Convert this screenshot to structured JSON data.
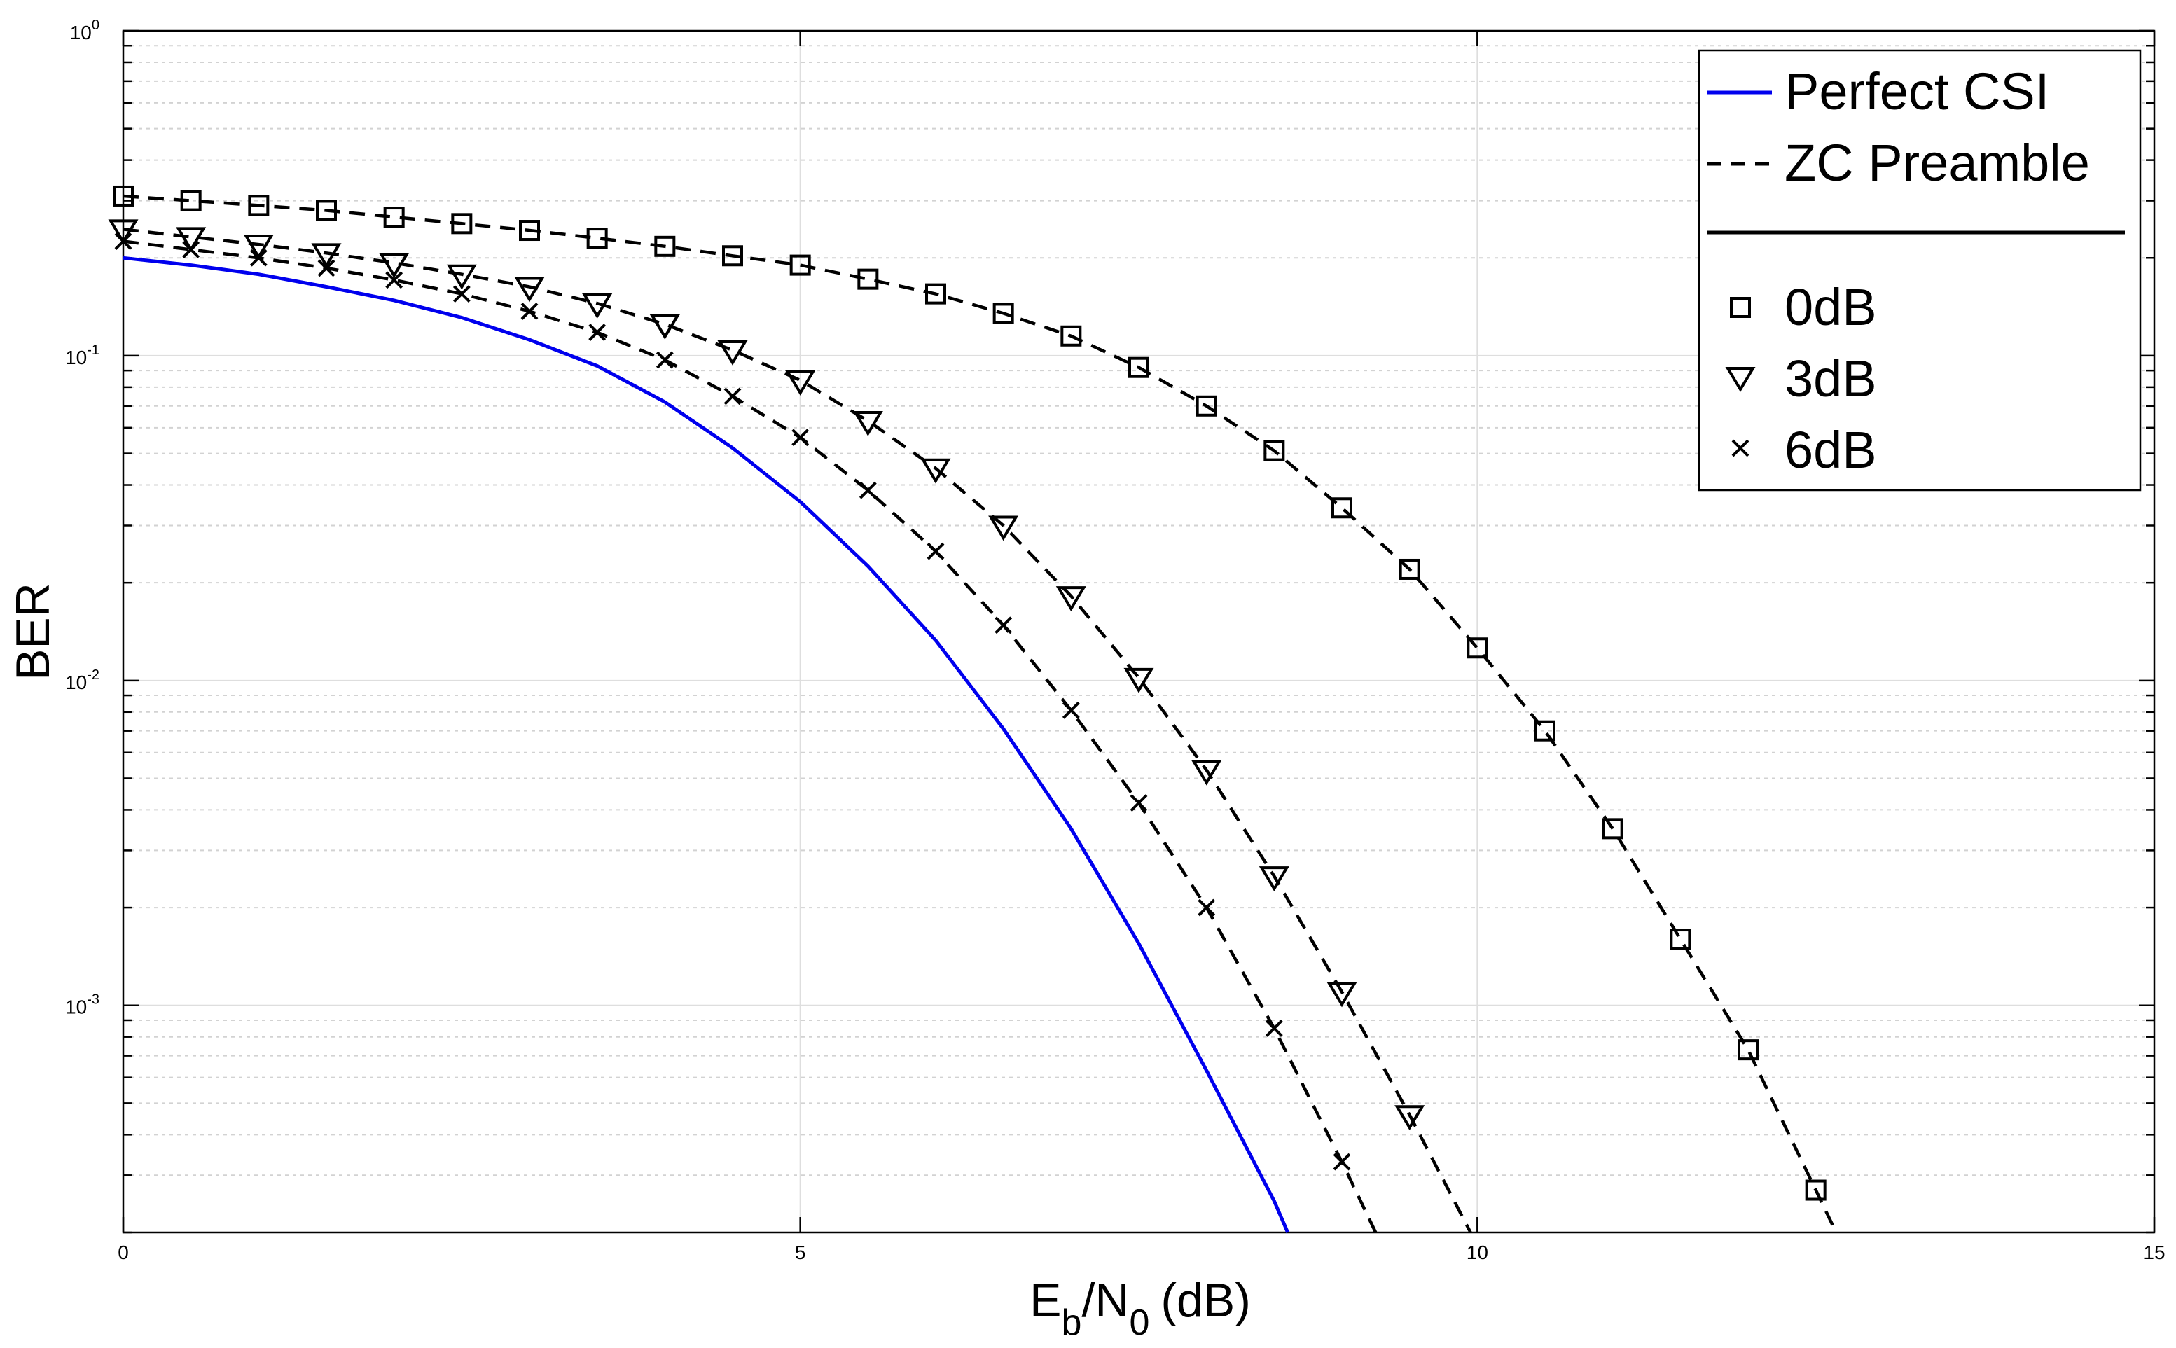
{
  "chart_data": {
    "type": "line",
    "yscale": "log",
    "title": "",
    "xlabel_parts": {
      "e": "E",
      "e_sub": "b",
      "slash": "/",
      "n": "N",
      "n_sub": "0",
      "unit": "(dB)"
    },
    "ylabel": "BER",
    "xlim": [
      0,
      15
    ],
    "ylim": [
      0.0002,
      1
    ],
    "grid": true,
    "x_ticks": [
      0,
      5,
      10,
      15
    ],
    "x_tick_labels": [
      "0",
      "5",
      "10",
      "15"
    ],
    "y_ticks": [
      {
        "value": 1,
        "base": "10",
        "exp": "0"
      },
      {
        "value": 0.1,
        "base": "10",
        "exp": "-1"
      },
      {
        "value": 0.01,
        "base": "10",
        "exp": "-2"
      },
      {
        "value": 0.001,
        "base": "10",
        "exp": "-3"
      }
    ],
    "legend": {
      "placement": "top-right",
      "entries": [
        {
          "label": "Perfect CSI",
          "kind": "line",
          "style": "solid",
          "color": "#0000ee"
        },
        {
          "label": "ZC Preamble",
          "kind": "line",
          "style": "dashed",
          "color": "#000000"
        },
        {
          "kind": "separator"
        },
        {
          "label": "0dB",
          "kind": "marker",
          "marker": "square"
        },
        {
          "label": "3dB",
          "kind": "marker",
          "marker": "triangle-down"
        },
        {
          "label": "6dB",
          "kind": "marker",
          "marker": "x"
        }
      ]
    },
    "series": [
      {
        "name": "Perfect CSI",
        "style": "solid",
        "color": "#0000ee",
        "marker": "none",
        "x": [
          0,
          0.5,
          1,
          1.5,
          2,
          2.5,
          3,
          3.5,
          4,
          4.5,
          5,
          5.5,
          6,
          6.5,
          7,
          7.5,
          8,
          8.5,
          8.6
        ],
        "y": [
          0.2,
          0.19,
          0.178,
          0.163,
          0.148,
          0.131,
          0.112,
          0.093,
          0.072,
          0.052,
          0.0355,
          0.0225,
          0.0133,
          0.0071,
          0.0035,
          0.00155,
          0.00063,
          0.00025,
          0.0002
        ]
      },
      {
        "name": "ZC Preamble 0dB",
        "style": "dashed",
        "color": "#000000",
        "marker": "square",
        "x": [
          0,
          0.5,
          1,
          1.5,
          2,
          2.5,
          3,
          3.5,
          4,
          4.5,
          5,
          5.5,
          6,
          6.5,
          7,
          7.5,
          8,
          8.5,
          9,
          9.5,
          10,
          10.5,
          11,
          11.5,
          12,
          12.5,
          12.65
        ],
        "y": [
          0.31,
          0.3,
          0.29,
          0.28,
          0.267,
          0.255,
          0.243,
          0.23,
          0.217,
          0.203,
          0.19,
          0.172,
          0.155,
          0.135,
          0.115,
          0.092,
          0.07,
          0.051,
          0.034,
          0.022,
          0.0126,
          0.007,
          0.0035,
          0.0016,
          0.00073,
          0.00027,
          0.0002
        ],
        "marker_count": 26
      },
      {
        "name": "ZC Preamble 3dB",
        "style": "dashed",
        "color": "#000000",
        "marker": "triangle-down",
        "x": [
          0,
          0.5,
          1,
          1.5,
          2,
          2.5,
          3,
          3.5,
          4,
          4.5,
          5,
          5.5,
          6,
          6.5,
          7,
          7.5,
          8,
          8.5,
          9,
          9.5,
          9.95
        ],
        "y": [
          0.245,
          0.232,
          0.22,
          0.207,
          0.193,
          0.178,
          0.163,
          0.145,
          0.125,
          0.104,
          0.084,
          0.063,
          0.045,
          0.03,
          0.0182,
          0.0102,
          0.0053,
          0.0025,
          0.0011,
          0.00046,
          0.0002
        ],
        "marker_count": 20
      },
      {
        "name": "ZC Preamble 6dB",
        "style": "dashed",
        "color": "#000000",
        "marker": "x",
        "x": [
          0,
          0.5,
          1,
          1.5,
          2,
          2.5,
          3,
          3.5,
          4,
          4.5,
          5,
          5.5,
          6,
          6.5,
          7,
          7.5,
          8,
          8.5,
          9,
          9.25
        ],
        "y": [
          0.225,
          0.212,
          0.2,
          0.186,
          0.171,
          0.155,
          0.137,
          0.118,
          0.097,
          0.075,
          0.056,
          0.0385,
          0.025,
          0.0148,
          0.0081,
          0.0042,
          0.002,
          0.00085,
          0.00033,
          0.0002
        ],
        "marker_count": 19
      }
    ]
  }
}
